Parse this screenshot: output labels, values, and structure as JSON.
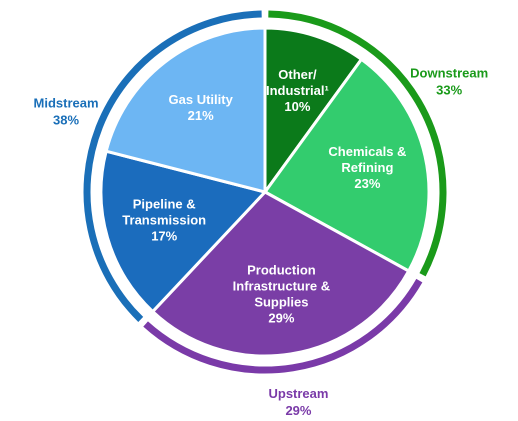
{
  "chart_data": {
    "type": "pie",
    "categories": [
      [
        "Other/",
        "Industrial¹"
      ],
      [
        "Chemicals &",
        "Refining"
      ],
      [
        "Production",
        "Infrastructure &",
        "Supplies"
      ],
      [
        "Pipeline &",
        "Transmission"
      ],
      [
        "Gas Utility"
      ]
    ],
    "values": [
      10,
      23,
      29,
      17,
      21
    ],
    "value_labels": [
      "10%",
      "23%",
      "29%",
      "17%",
      "21%"
    ],
    "colors": [
      "#0b7a1a",
      "#33cc6e",
      "#7a3ea6",
      "#1b6cbd",
      "#6db6f3"
    ],
    "groups": [
      {
        "name": "Downstream",
        "value": 33,
        "value_label": "33%",
        "color": "#1a9a1a"
      },
      {
        "name": "Upstream",
        "value": 29,
        "value_label": "29%",
        "color": "#7a3aa8"
      },
      {
        "name": "Midstream",
        "value": 38,
        "value_label": "38%",
        "color": "#1a6fb8"
      }
    ]
  }
}
